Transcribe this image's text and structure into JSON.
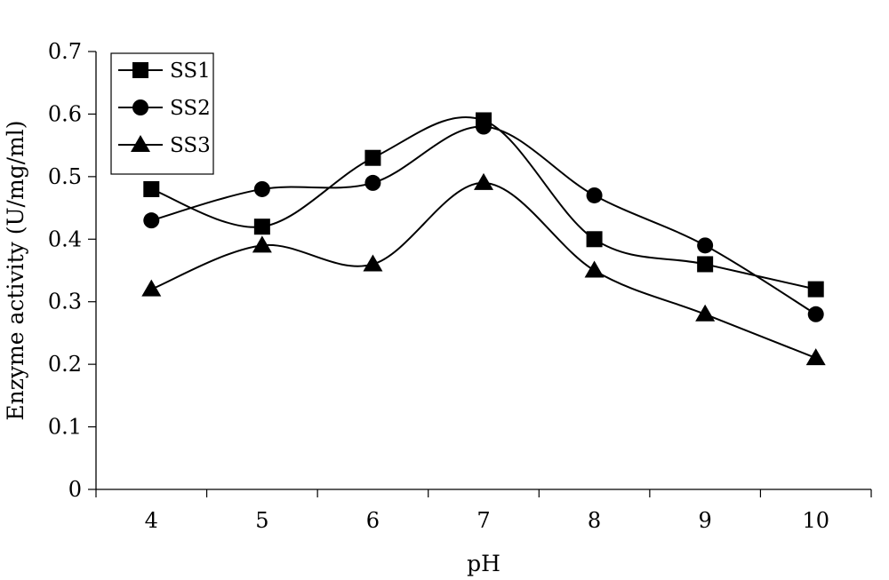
{
  "chart_data": {
    "type": "line",
    "xlabel": "pH",
    "ylabel": "Enzyme activity (U/mg/ml)",
    "x": [
      4,
      5,
      6,
      7,
      8,
      9,
      10
    ],
    "x_tick_labels": [
      "4",
      "5",
      "6",
      "7",
      "8",
      "9",
      "10"
    ],
    "ylim": [
      0,
      0.7
    ],
    "y_ticks": [
      0,
      0.1,
      0.2,
      0.3,
      0.4,
      0.5,
      0.6,
      0.7
    ],
    "y_tick_labels": [
      "0",
      "0.1",
      "0.2",
      "0.3",
      "0.4",
      "0.5",
      "0.6",
      "0.7"
    ],
    "smooth_lines": true,
    "grid": false,
    "legend_position": "top-left",
    "series": [
      {
        "name": "SS1",
        "marker": "square",
        "values": [
          0.48,
          0.42,
          0.53,
          0.59,
          0.4,
          0.36,
          0.32
        ]
      },
      {
        "name": "SS2",
        "marker": "circle",
        "values": [
          0.43,
          0.48,
          0.49,
          0.58,
          0.47,
          0.39,
          0.28
        ]
      },
      {
        "name": "SS3",
        "marker": "triangle",
        "values": [
          0.32,
          0.39,
          0.36,
          0.49,
          0.35,
          0.28,
          0.21
        ]
      }
    ]
  }
}
